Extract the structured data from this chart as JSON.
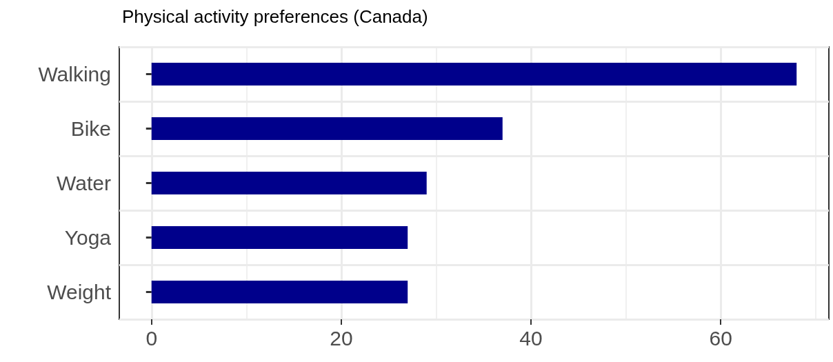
{
  "chart_data": {
    "type": "bar",
    "title": "Physical activity preferences (Canada)",
    "orientation": "horizontal",
    "categories": [
      "Walking",
      "Bike",
      "Water",
      "Yoga",
      "Weight"
    ],
    "values": [
      68,
      37,
      29,
      27,
      27
    ],
    "color": "#00008b",
    "xlim": [
      -3.4,
      71.4
    ],
    "xticks": [
      0,
      20,
      40,
      60
    ],
    "grid": true
  }
}
